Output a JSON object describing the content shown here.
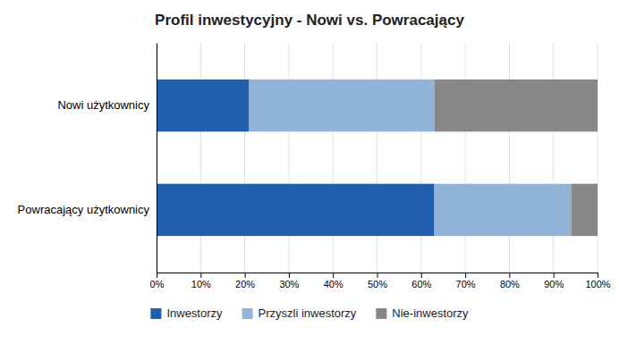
{
  "chart_data": {
    "type": "bar",
    "orientation": "horizontal",
    "stacked": true,
    "title": "Profil inwestycyjny - Nowi vs. Powracający",
    "categories": [
      "Powracający użytkownicy",
      "Nowi użytkownicy"
    ],
    "series": [
      {
        "name": "Inwestorzy",
        "color": "#1F5FAD",
        "values": [
          0.63,
          0.21
        ]
      },
      {
        "name": "Przyszli inwestorzy",
        "color": "#92B4D8",
        "values": [
          0.31,
          0.42
        ]
      },
      {
        "name": "Nie-inwestorzy",
        "color": "#878787",
        "values": [
          0.06,
          0.37
        ]
      }
    ],
    "xlim": [
      0,
      1.0
    ],
    "xticks": [
      {
        "value": 0.0,
        "label": "0%"
      },
      {
        "value": 0.1,
        "label": "10%"
      },
      {
        "value": 0.2,
        "label": "20%"
      },
      {
        "value": 0.3,
        "label": "30%"
      },
      {
        "value": 0.4,
        "label": "40%"
      },
      {
        "value": 0.5,
        "label": "50%"
      },
      {
        "value": 0.6,
        "label": "60%"
      },
      {
        "value": 0.7,
        "label": "70%"
      },
      {
        "value": 0.8,
        "label": "80%"
      },
      {
        "value": 0.9,
        "label": "90%"
      },
      {
        "value": 1.0,
        "label": "100%"
      }
    ],
    "grid": true,
    "legend": "bottom"
  }
}
